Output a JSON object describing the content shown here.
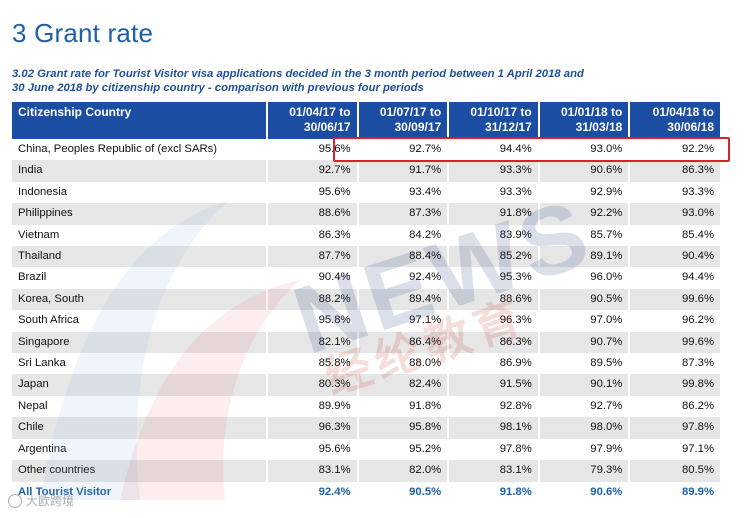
{
  "header": {
    "title": "3 Grant rate",
    "subtitle_line1": "3.02 Grant rate for Tourist Visitor visa applications decided in the 3 month period between 1 April 2018 and",
    "subtitle_line2": "30 June 2018 by citizenship country - comparison with previous four periods"
  },
  "table": {
    "columns": [
      {
        "label_top": "Citizenship Country",
        "label_bottom": ""
      },
      {
        "label_top": "01/04/17 to",
        "label_bottom": "30/06/17"
      },
      {
        "label_top": "01/07/17 to",
        "label_bottom": "30/09/17"
      },
      {
        "label_top": "01/10/17 to",
        "label_bottom": "31/12/17"
      },
      {
        "label_top": "01/01/18 to",
        "label_bottom": "31/03/18"
      },
      {
        "label_top": "01/04/18 to",
        "label_bottom": "30/06/18"
      }
    ],
    "rows": [
      {
        "country": "China, Peoples Republic of (excl SARs)",
        "values": [
          "95.6%",
          "92.7%",
          "94.4%",
          "93.0%",
          "92.2%"
        ]
      },
      {
        "country": "India",
        "values": [
          "92.7%",
          "91.7%",
          "93.3%",
          "90.6%",
          "86.3%"
        ]
      },
      {
        "country": "Indonesia",
        "values": [
          "95.6%",
          "93.4%",
          "93.3%",
          "92.9%",
          "93.3%"
        ]
      },
      {
        "country": "Philippines",
        "values": [
          "88.6%",
          "87.3%",
          "91.8%",
          "92.2%",
          "93.0%"
        ]
      },
      {
        "country": "Vietnam",
        "values": [
          "86.3%",
          "84.2%",
          "83.9%",
          "85.7%",
          "85.4%"
        ]
      },
      {
        "country": "Thailand",
        "values": [
          "87.7%",
          "88.4%",
          "85.2%",
          "89.1%",
          "90.4%"
        ]
      },
      {
        "country": "Brazil",
        "values": [
          "90.4%",
          "92.4%",
          "95.3%",
          "96.0%",
          "94.4%"
        ]
      },
      {
        "country": "Korea, South",
        "values": [
          "88.2%",
          "89.4%",
          "88.6%",
          "90.5%",
          "99.6%"
        ]
      },
      {
        "country": "South Africa",
        "values": [
          "95.8%",
          "97.1%",
          "96.3%",
          "97.0%",
          "96.2%"
        ]
      },
      {
        "country": "Singapore",
        "values": [
          "82.1%",
          "86.4%",
          "86.3%",
          "90.7%",
          "99.6%"
        ]
      },
      {
        "country": "Sri Lanka",
        "values": [
          "85.8%",
          "88.0%",
          "86.9%",
          "89.5%",
          "87.3%"
        ]
      },
      {
        "country": "Japan",
        "values": [
          "80.3%",
          "82.4%",
          "91.5%",
          "90.1%",
          "99.8%"
        ]
      },
      {
        "country": "Nepal",
        "values": [
          "89.9%",
          "91.8%",
          "92.8%",
          "92.7%",
          "86.2%"
        ]
      },
      {
        "country": "Chile",
        "values": [
          "96.3%",
          "95.8%",
          "98.1%",
          "98.0%",
          "97.8%"
        ]
      },
      {
        "country": "Argentina",
        "values": [
          "95.6%",
          "95.2%",
          "97.8%",
          "97.9%",
          "97.1%"
        ]
      },
      {
        "country": "Other countries",
        "values": [
          "83.1%",
          "82.0%",
          "83.1%",
          "79.3%",
          "80.5%"
        ]
      }
    ],
    "total": {
      "country": "All Tourist Visitor",
      "values": [
        "92.4%",
        "90.5%",
        "91.8%",
        "90.6%",
        "89.9%"
      ]
    }
  },
  "watermark": {
    "text_en": "NEWS",
    "text_cn": "经纶教育",
    "footer_text": "大欧跨境"
  },
  "colors": {
    "title_blue": "#1f5fa8",
    "header_blue": "#1b4ea3",
    "highlight_red": "#d8232a",
    "row_stripe": "#e6e6e6"
  }
}
